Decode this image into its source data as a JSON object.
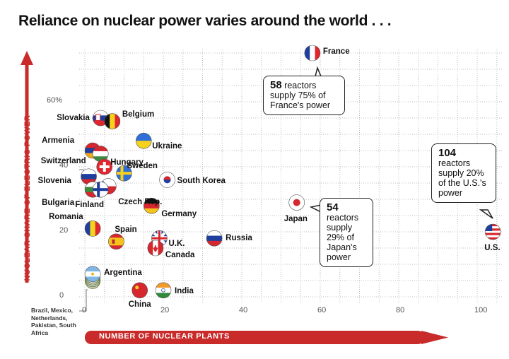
{
  "title": "Reliance on nuclear power varies around the world . . .",
  "colors": {
    "accent": "#c92a2a",
    "grid": "#bdbdbd"
  },
  "callouts": {
    "france": {
      "number": "58",
      "text": "reactors supply 75% of France's power"
    },
    "us": {
      "number": "104",
      "text": "reactors supply 20% of the U.S.'s power"
    },
    "japan": {
      "number": "54",
      "text": "reactors supply 29% of Japan's power"
    }
  },
  "small_group_label": "Brazil, Mexico, Netherlands, Pakistan, South Africa",
  "chart_data": {
    "type": "scatter",
    "title": "Reliance on nuclear power varies around the world . . .",
    "xlabel": "NUMBER OF NUCLEAR PLANTS",
    "ylabel": "NUCLEAR SHARE OF ELECTRIC POWER",
    "xlim": [
      0,
      105
    ],
    "ylim": [
      0,
      78
    ],
    "x_ticks": [
      "0",
      "20",
      "40",
      "60",
      "80",
      "100"
    ],
    "y_ticks": [
      "0",
      "20",
      "40",
      "60%"
    ],
    "grid": true,
    "points": [
      {
        "name": "France",
        "x": 58,
        "y": 75,
        "flag": "france-flag"
      },
      {
        "name": "Slovakia",
        "x": 4,
        "y": 55,
        "flag": "slovakia-flag"
      },
      {
        "name": "Belgium",
        "x": 7,
        "y": 54,
        "flag": "belgium-flag"
      },
      {
        "name": "Ukraine",
        "x": 15,
        "y": 48,
        "flag": "ukraine-flag"
      },
      {
        "name": "Armenia",
        "x": 2,
        "y": 45,
        "flag": "armenia-flag"
      },
      {
        "name": "Hungary",
        "x": 4,
        "y": 44,
        "flag": "hungary-flag"
      },
      {
        "name": "Switzerland",
        "x": 5,
        "y": 40,
        "flag": "switzerland-flag"
      },
      {
        "name": "Sweden",
        "x": 10,
        "y": 38,
        "flag": "sweden-flag"
      },
      {
        "name": "Slovenia",
        "x": 1,
        "y": 37,
        "flag": "slovenia-flag"
      },
      {
        "name": "Czech Rep.",
        "x": 6,
        "y": 34,
        "flag": "czech-flag"
      },
      {
        "name": "Bulgaria",
        "x": 2,
        "y": 33,
        "flag": "bulgaria-flag"
      },
      {
        "name": "Finland",
        "x": 4,
        "y": 33,
        "flag": "finland-flag"
      },
      {
        "name": "South Korea",
        "x": 21,
        "y": 36,
        "flag": "south-korea-flag"
      },
      {
        "name": "Germany",
        "x": 17,
        "y": 28,
        "flag": "germany-flag"
      },
      {
        "name": "Japan",
        "x": 54,
        "y": 29,
        "flag": "japan-flag"
      },
      {
        "name": "Romania",
        "x": 2,
        "y": 21,
        "flag": "romania-flag"
      },
      {
        "name": "Spain",
        "x": 8,
        "y": 17,
        "flag": "spain-flag"
      },
      {
        "name": "U.K.",
        "x": 19,
        "y": 18,
        "flag": "uk-flag"
      },
      {
        "name": "Canada",
        "x": 18,
        "y": 15,
        "flag": "canada-flag"
      },
      {
        "name": "Russia",
        "x": 33,
        "y": 18,
        "flag": "russia-flag"
      },
      {
        "name": "U.S.",
        "x": 104,
        "y": 20,
        "flag": "us-flag"
      },
      {
        "name": "Argentina",
        "x": 2,
        "y": 7,
        "flag": "argentina-flag"
      },
      {
        "name": "India",
        "x": 20,
        "y": 2,
        "flag": "india-flag"
      },
      {
        "name": "China",
        "x": 14,
        "y": 2,
        "flag": "china-flag"
      }
    ]
  }
}
